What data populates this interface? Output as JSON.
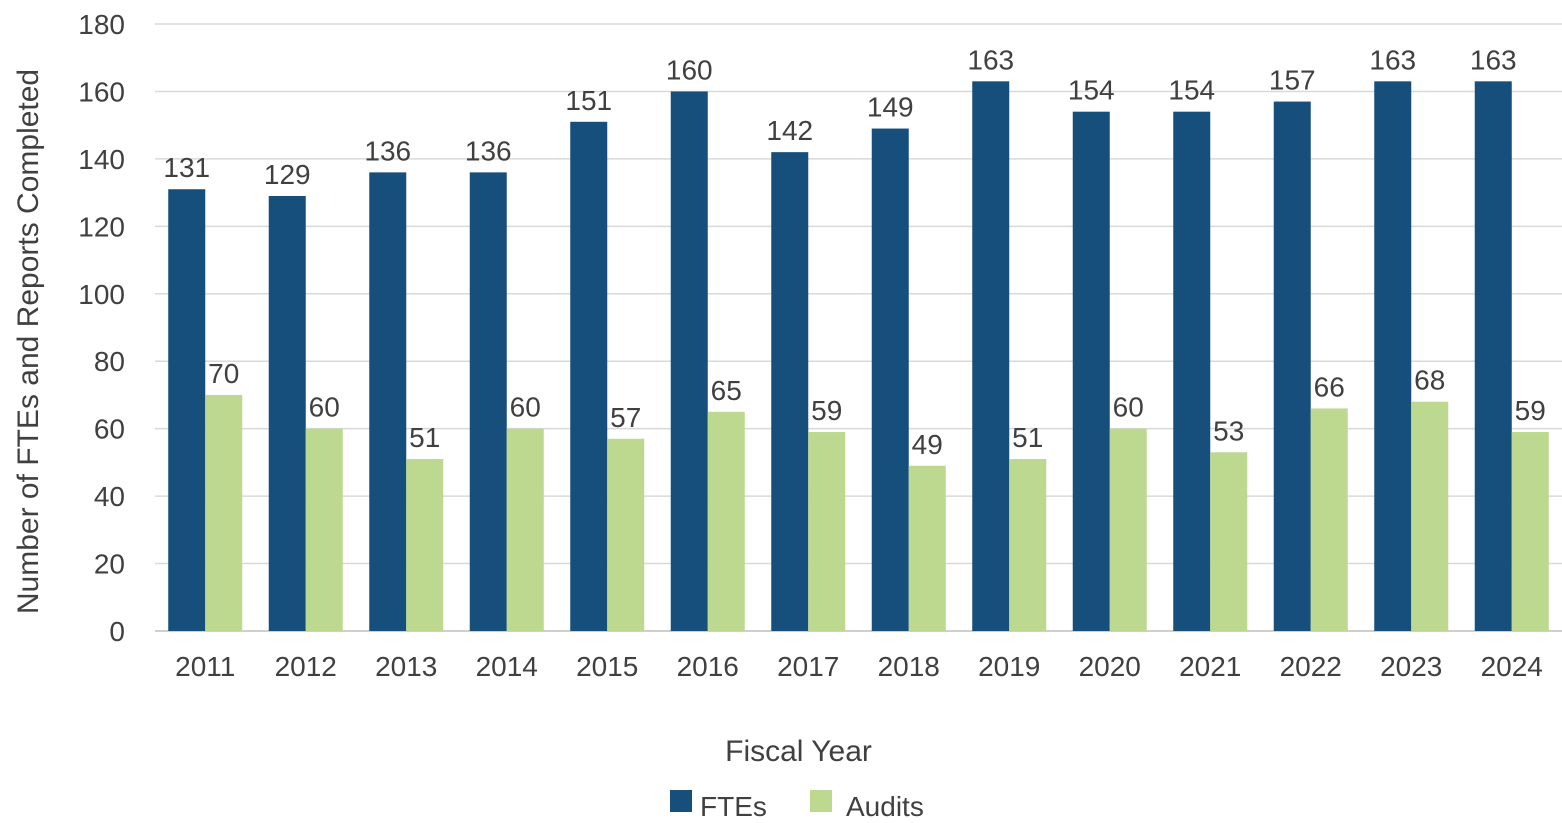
{
  "chart_data": {
    "type": "bar",
    "categories": [
      "2011",
      "2012",
      "2013",
      "2014",
      "2015",
      "2016",
      "2017",
      "2018",
      "2019",
      "2020",
      "2021",
      "2022",
      "2023",
      "2024"
    ],
    "series": [
      {
        "name": "FTEs",
        "values": [
          131,
          129,
          136,
          136,
          151,
          160,
          142,
          149,
          163,
          154,
          154,
          157,
          163,
          163
        ],
        "color": "#174f7c"
      },
      {
        "name": "Audits",
        "values": [
          70,
          60,
          51,
          60,
          57,
          65,
          59,
          49,
          51,
          60,
          53,
          66,
          68,
          59
        ],
        "color": "#bcd98f"
      }
    ],
    "title": "",
    "xlabel": "Fiscal Year",
    "ylabel": "Number of FTEs and Reports Completed",
    "ylim": [
      0,
      180
    ],
    "yticks": [
      0,
      20,
      40,
      60,
      80,
      100,
      120,
      140,
      160,
      180
    ],
    "grid": true,
    "data_labels": true,
    "legend": "bottom-center"
  }
}
